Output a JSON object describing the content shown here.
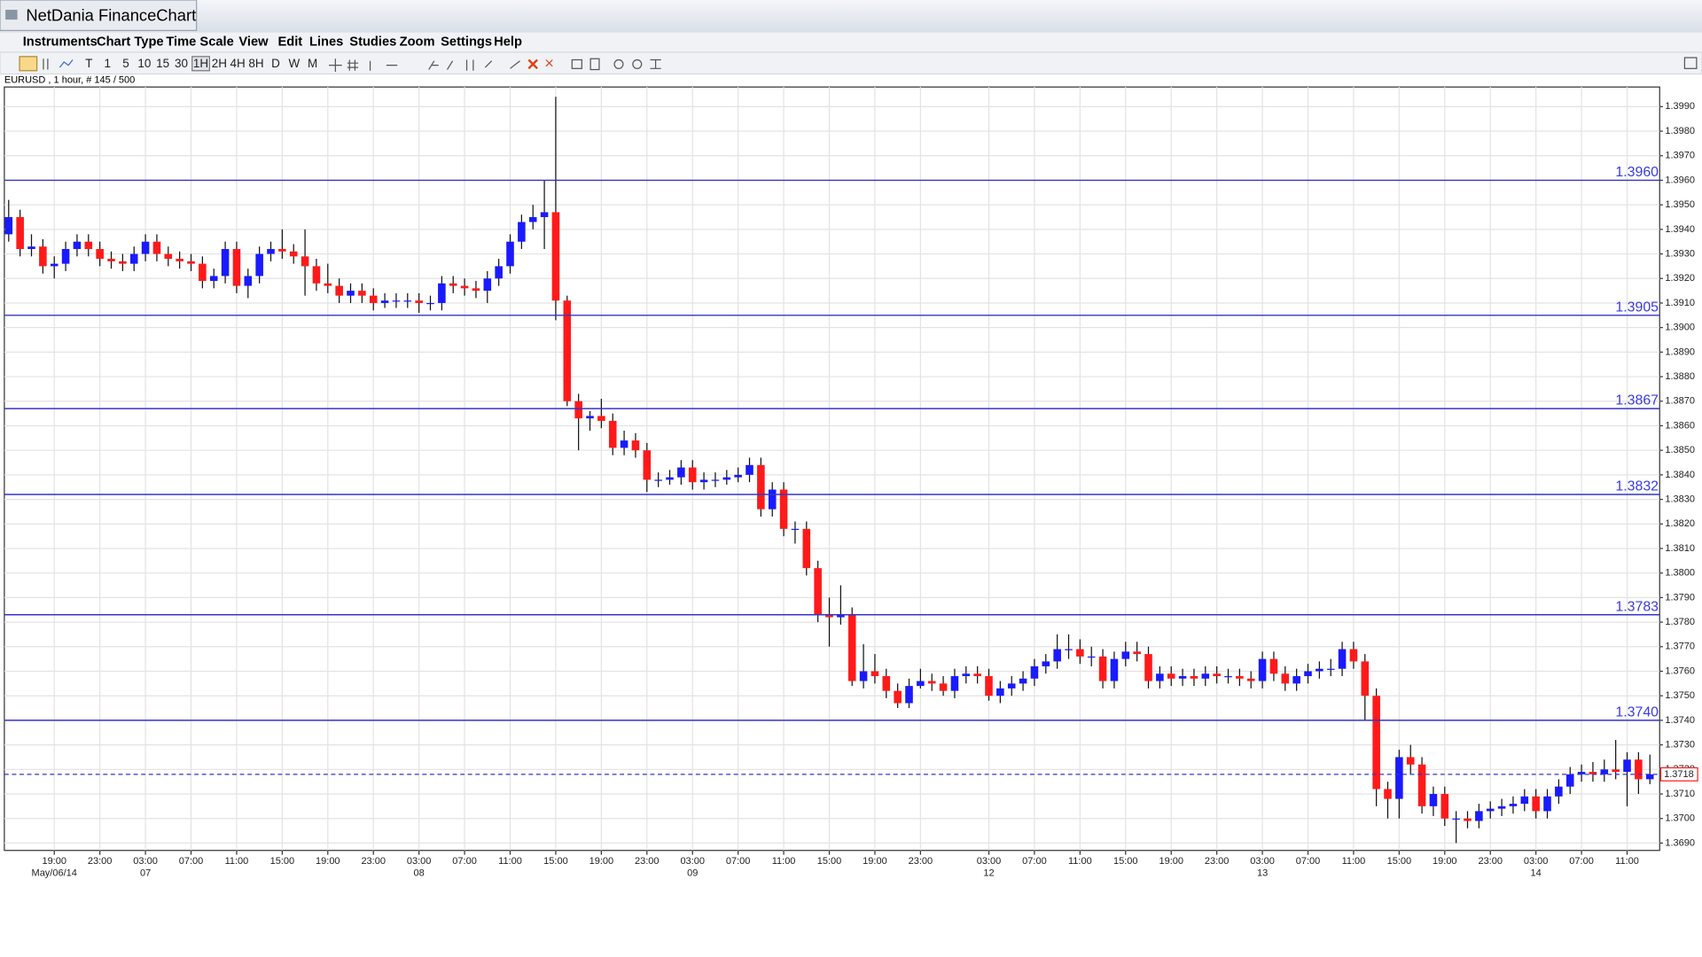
{
  "app": {
    "title": "NetDania FinanceChart",
    "menu": [
      "Instruments",
      "Chart Type",
      "Time Scale",
      "View",
      "Edit",
      "Lines",
      "Studies",
      "Zoom",
      "Settings",
      "Help"
    ],
    "toolbar": [
      "T",
      "1",
      "5",
      "10",
      "15",
      "30",
      "1H",
      "2H",
      "4H",
      "8H",
      "D",
      "W",
      "M"
    ],
    "info": "EURUSD , 1 hour, # 145 / 500"
  },
  "chart_data": {
    "type": "candlestick",
    "up_color": "#1a1aff",
    "down_color": "#ff1a1a",
    "level_color": "#3434c8",
    "grid": true,
    "ylim": [
      1.3687,
      1.3998
    ],
    "yticks": [
      {
        "value": 1.369,
        "label": "1.3690"
      },
      {
        "value": 1.37,
        "label": "1.3700"
      },
      {
        "value": 1.371,
        "label": "1.3710"
      },
      {
        "value": 1.372,
        "label": "1.3720"
      },
      {
        "value": 1.373,
        "label": "1.3730"
      },
      {
        "value": 1.374,
        "label": "1.3740"
      },
      {
        "value": 1.375,
        "label": "1.3750"
      },
      {
        "value": 1.376,
        "label": "1.3760"
      },
      {
        "value": 1.377,
        "label": "1.3770"
      },
      {
        "value": 1.378,
        "label": "1.3780"
      },
      {
        "value": 1.379,
        "label": "1.3790"
      },
      {
        "value": 1.38,
        "label": "1.3800"
      },
      {
        "value": 1.381,
        "label": "1.3810"
      },
      {
        "value": 1.382,
        "label": "1.3820"
      },
      {
        "value": 1.383,
        "label": "1.3830"
      },
      {
        "value": 1.384,
        "label": "1.3840"
      },
      {
        "value": 1.385,
        "label": "1.3850"
      },
      {
        "value": 1.386,
        "label": "1.3860"
      },
      {
        "value": 1.387,
        "label": "1.3870"
      },
      {
        "value": 1.388,
        "label": "1.3880"
      },
      {
        "value": 1.389,
        "label": "1.3890"
      },
      {
        "value": 1.39,
        "label": "1.3900"
      },
      {
        "value": 1.391,
        "label": "1.3910"
      },
      {
        "value": 1.392,
        "label": "1.3920"
      },
      {
        "value": 1.393,
        "label": "1.3930"
      },
      {
        "value": 1.394,
        "label": "1.3940"
      },
      {
        "value": 1.395,
        "label": "1.3950"
      },
      {
        "value": 1.396,
        "label": "1.3960"
      },
      {
        "value": 1.397,
        "label": "1.3970"
      },
      {
        "value": 1.398,
        "label": "1.3980"
      },
      {
        "value": 1.399,
        "label": "1.3990"
      }
    ],
    "xticks": [
      {
        "value": 4,
        "label": "19:00"
      },
      {
        "value": 8,
        "label": "23:00"
      },
      {
        "value": 12,
        "label": "03:00"
      },
      {
        "value": 16,
        "label": "07:00"
      },
      {
        "value": 20,
        "label": "11:00"
      },
      {
        "value": 24,
        "label": "15:00"
      },
      {
        "value": 28,
        "label": "19:00"
      },
      {
        "value": 32,
        "label": "23:00"
      },
      {
        "value": 36,
        "label": "03:00"
      },
      {
        "value": 40,
        "label": "07:00"
      },
      {
        "value": 44,
        "label": "11:00"
      },
      {
        "value": 48,
        "label": "15:00"
      },
      {
        "value": 52,
        "label": "19:00"
      },
      {
        "value": 56,
        "label": "23:00"
      },
      {
        "value": 60,
        "label": "03:00"
      },
      {
        "value": 64,
        "label": "07:00"
      },
      {
        "value": 68,
        "label": "11:00"
      },
      {
        "value": 72,
        "label": "15:00"
      },
      {
        "value": 76,
        "label": "19:00"
      },
      {
        "value": 80,
        "label": "23:00"
      },
      {
        "value": 86,
        "label": "03:00"
      },
      {
        "value": 90,
        "label": "07:00"
      },
      {
        "value": 94,
        "label": "11:00"
      },
      {
        "value": 98,
        "label": "15:00"
      },
      {
        "value": 102,
        "label": "19:00"
      },
      {
        "value": 106,
        "label": "23:00"
      },
      {
        "value": 110,
        "label": "03:00"
      },
      {
        "value": 114,
        "label": "07:00"
      },
      {
        "value": 118,
        "label": "11:00"
      },
      {
        "value": 122,
        "label": "15:00"
      },
      {
        "value": 126,
        "label": "19:00"
      },
      {
        "value": 130,
        "label": "23:00"
      },
      {
        "value": 134,
        "label": "03:00"
      },
      {
        "value": 138,
        "label": "07:00"
      },
      {
        "value": 142,
        "label": "11:00"
      }
    ],
    "xdates": [
      {
        "value": 4,
        "label": "May/06/14"
      },
      {
        "value": 12,
        "label": "07"
      },
      {
        "value": 36,
        "label": "08"
      },
      {
        "value": 60,
        "label": "09"
      },
      {
        "value": 86,
        "label": "12"
      },
      {
        "value": 110,
        "label": "13"
      },
      {
        "value": 134,
        "label": "14"
      }
    ],
    "levels": [
      {
        "value": 1.396,
        "label": "1.3960"
      },
      1.3905,
      1.3867,
      1.3832,
      1.3783,
      {
        "value": 1.374,
        "label": "1.3740"
      }
    ],
    "last": 1.3718,
    "candles": [
      [
        1.3938,
        1.3952,
        1.3935,
        1.3945
      ],
      [
        1.3945,
        1.3948,
        1.3929,
        1.3932
      ],
      [
        1.3932,
        1.3938,
        1.3929,
        1.3933
      ],
      [
        1.3933,
        1.3936,
        1.3922,
        1.3925
      ],
      [
        1.3925,
        1.3929,
        1.392,
        1.3926
      ],
      [
        1.3926,
        1.3935,
        1.3923,
        1.3932
      ],
      [
        1.3932,
        1.3938,
        1.3929,
        1.3935
      ],
      [
        1.3935,
        1.3938,
        1.3929,
        1.3932
      ],
      [
        1.3932,
        1.3935,
        1.3925,
        1.3928
      ],
      [
        1.3928,
        1.3931,
        1.3924,
        1.3927
      ],
      [
        1.3927,
        1.393,
        1.3923,
        1.3926
      ],
      [
        1.3926,
        1.3933,
        1.3923,
        1.393
      ],
      [
        1.393,
        1.3938,
        1.3927,
        1.3935
      ],
      [
        1.3935,
        1.3938,
        1.3927,
        1.393
      ],
      [
        1.393,
        1.3933,
        1.3925,
        1.3928
      ],
      [
        1.3928,
        1.3931,
        1.3924,
        1.3927
      ],
      [
        1.3927,
        1.393,
        1.3923,
        1.3926
      ],
      [
        1.3926,
        1.3929,
        1.3916,
        1.3919
      ],
      [
        1.3919,
        1.3924,
        1.3916,
        1.3921
      ],
      [
        1.3921,
        1.3935,
        1.3918,
        1.3932
      ],
      [
        1.3932,
        1.3935,
        1.3914,
        1.3917
      ],
      [
        1.3917,
        1.3924,
        1.3912,
        1.3921
      ],
      [
        1.3921,
        1.3933,
        1.3918,
        1.393
      ],
      [
        1.393,
        1.3935,
        1.3927,
        1.3932
      ],
      [
        1.3932,
        1.394,
        1.3928,
        1.3931
      ],
      [
        1.3931,
        1.3934,
        1.3926,
        1.3929
      ],
      [
        1.3929,
        1.394,
        1.3913,
        1.3925
      ],
      [
        1.3925,
        1.3928,
        1.3915,
        1.3918
      ],
      [
        1.3918,
        1.3926,
        1.3914,
        1.3917
      ],
      [
        1.3917,
        1.392,
        1.391,
        1.3913
      ],
      [
        1.3913,
        1.3918,
        1.391,
        1.3915
      ],
      [
        1.3915,
        1.3918,
        1.391,
        1.3913
      ],
      [
        1.3913,
        1.3916,
        1.3907,
        1.391
      ],
      [
        1.391,
        1.3914,
        1.3908,
        1.3911
      ],
      [
        1.3911,
        1.3914,
        1.3908,
        1.3911
      ],
      [
        1.3911,
        1.3914,
        1.3908,
        1.3911
      ],
      [
        1.3911,
        1.3914,
        1.3906,
        1.391
      ],
      [
        1.391,
        1.3913,
        1.3907,
        1.391
      ],
      [
        1.391,
        1.3921,
        1.3907,
        1.3918
      ],
      [
        1.3918,
        1.3921,
        1.3914,
        1.3917
      ],
      [
        1.3917,
        1.392,
        1.3913,
        1.3916
      ],
      [
        1.3916,
        1.3919,
        1.3912,
        1.3915
      ],
      [
        1.3915,
        1.3923,
        1.391,
        1.392
      ],
      [
        1.392,
        1.3928,
        1.3917,
        1.3925
      ],
      [
        1.3925,
        1.3938,
        1.3922,
        1.3935
      ],
      [
        1.3935,
        1.3946,
        1.3932,
        1.3943
      ],
      [
        1.3943,
        1.395,
        1.394,
        1.3945
      ],
      [
        1.3945,
        1.396,
        1.3932,
        1.3947
      ],
      [
        1.3947,
        1.3994,
        1.3903,
        1.3911
      ],
      [
        1.3911,
        1.3913,
        1.3868,
        1.387
      ],
      [
        1.387,
        1.3873,
        1.385,
        1.3863
      ],
      [
        1.3863,
        1.3866,
        1.3858,
        1.3864
      ],
      [
        1.3864,
        1.3871,
        1.3859,
        1.3862
      ],
      [
        1.3862,
        1.3865,
        1.3848,
        1.3851
      ],
      [
        1.3851,
        1.3858,
        1.3848,
        1.3854
      ],
      [
        1.3854,
        1.3857,
        1.3847,
        1.385
      ],
      [
        1.385,
        1.3853,
        1.3833,
        1.3838
      ],
      [
        1.3838,
        1.3841,
        1.3835,
        1.3838
      ],
      [
        1.3838,
        1.3842,
        1.3836,
        1.3839
      ],
      [
        1.3839,
        1.3846,
        1.3836,
        1.3843
      ],
      [
        1.3843,
        1.3846,
        1.3834,
        1.3837
      ],
      [
        1.3837,
        1.3841,
        1.3834,
        1.3838
      ],
      [
        1.3838,
        1.3841,
        1.3835,
        1.3838
      ],
      [
        1.3838,
        1.3842,
        1.3836,
        1.3839
      ],
      [
        1.3839,
        1.3843,
        1.3837,
        1.384
      ],
      [
        1.384,
        1.3847,
        1.3837,
        1.3844
      ],
      [
        1.3844,
        1.3847,
        1.3823,
        1.3826
      ],
      [
        1.3826,
        1.3837,
        1.3823,
        1.3834
      ],
      [
        1.3834,
        1.3837,
        1.3815,
        1.3818
      ],
      [
        1.3818,
        1.3821,
        1.3812,
        1.3818
      ],
      [
        1.3818,
        1.3821,
        1.3799,
        1.3802
      ],
      [
        1.3802,
        1.3805,
        1.378,
        1.3783
      ],
      [
        1.3783,
        1.379,
        1.377,
        1.3782
      ],
      [
        1.3782,
        1.3795,
        1.3779,
        1.3783
      ],
      [
        1.3783,
        1.3786,
        1.3754,
        1.3756
      ],
      [
        1.3756,
        1.3771,
        1.3753,
        1.376
      ],
      [
        1.376,
        1.3767,
        1.3755,
        1.3758
      ],
      [
        1.3758,
        1.3761,
        1.3749,
        1.3752
      ],
      [
        1.3752,
        1.3755,
        1.3745,
        1.3747
      ],
      [
        1.3747,
        1.3757,
        1.3745,
        1.3754
      ],
      [
        1.3754,
        1.3761,
        1.3753,
        1.3756
      ],
      [
        1.3756,
        1.3759,
        1.3752,
        1.3755
      ],
      [
        1.3755,
        1.3758,
        1.375,
        1.3752
      ],
      [
        1.3752,
        1.3761,
        1.3749,
        1.3758
      ],
      [
        1.3758,
        1.3762,
        1.3755,
        1.3759
      ],
      [
        1.3759,
        1.3762,
        1.3755,
        1.3758
      ],
      [
        1.3758,
        1.3761,
        1.3748,
        1.375
      ],
      [
        1.375,
        1.3756,
        1.3747,
        1.3753
      ],
      [
        1.3753,
        1.3758,
        1.375,
        1.3755
      ],
      [
        1.3755,
        1.376,
        1.3752,
        1.3757
      ],
      [
        1.3757,
        1.3765,
        1.3754,
        1.3762
      ],
      [
        1.3762,
        1.3767,
        1.3759,
        1.3764
      ],
      [
        1.3764,
        1.3775,
        1.3761,
        1.3769
      ],
      [
        1.3769,
        1.3775,
        1.3765,
        1.3769
      ],
      [
        1.3769,
        1.3773,
        1.3763,
        1.3766
      ],
      [
        1.3766,
        1.377,
        1.3762,
        1.3766
      ],
      [
        1.3766,
        1.3769,
        1.3753,
        1.3756
      ],
      [
        1.3756,
        1.3768,
        1.3753,
        1.3765
      ],
      [
        1.3765,
        1.3772,
        1.3762,
        1.3768
      ],
      [
        1.3768,
        1.3772,
        1.3764,
        1.3767
      ],
      [
        1.3767,
        1.377,
        1.3753,
        1.3756
      ],
      [
        1.3756,
        1.3762,
        1.3753,
        1.3759
      ],
      [
        1.3759,
        1.3762,
        1.3754,
        1.3757
      ],
      [
        1.3757,
        1.3761,
        1.3754,
        1.3758
      ],
      [
        1.3758,
        1.3761,
        1.3754,
        1.3757
      ],
      [
        1.3757,
        1.3762,
        1.3754,
        1.3759
      ],
      [
        1.3759,
        1.3762,
        1.3755,
        1.3758
      ],
      [
        1.3758,
        1.3761,
        1.3755,
        1.3758
      ],
      [
        1.3758,
        1.3761,
        1.3754,
        1.3757
      ],
      [
        1.3757,
        1.376,
        1.3753,
        1.3756
      ],
      [
        1.3756,
        1.3768,
        1.3753,
        1.3765
      ],
      [
        1.3765,
        1.3768,
        1.3756,
        1.3759
      ],
      [
        1.3759,
        1.3762,
        1.3752,
        1.3755
      ],
      [
        1.3755,
        1.3761,
        1.3752,
        1.3758
      ],
      [
        1.3758,
        1.3763,
        1.3755,
        1.376
      ],
      [
        1.376,
        1.3764,
        1.3757,
        1.3761
      ],
      [
        1.3761,
        1.3765,
        1.3758,
        1.3761
      ],
      [
        1.3761,
        1.3772,
        1.3758,
        1.3769
      ],
      [
        1.3769,
        1.3772,
        1.3761,
        1.3764
      ],
      [
        1.3764,
        1.3767,
        1.374,
        1.375
      ],
      [
        1.375,
        1.3753,
        1.3705,
        1.3712
      ],
      [
        1.3712,
        1.3715,
        1.37,
        1.3708
      ],
      [
        1.3708,
        1.3728,
        1.37,
        1.3725
      ],
      [
        1.3725,
        1.373,
        1.3718,
        1.3722
      ],
      [
        1.3722,
        1.3725,
        1.3702,
        1.3705
      ],
      [
        1.3705,
        1.3713,
        1.3701,
        1.371
      ],
      [
        1.371,
        1.3713,
        1.3697,
        1.37
      ],
      [
        1.37,
        1.3703,
        1.369,
        1.37
      ],
      [
        1.37,
        1.3703,
        1.3696,
        1.3699
      ],
      [
        1.3699,
        1.3706,
        1.3696,
        1.3703
      ],
      [
        1.3703,
        1.3707,
        1.37,
        1.3704
      ],
      [
        1.3704,
        1.3708,
        1.3701,
        1.3705
      ],
      [
        1.3705,
        1.3709,
        1.3702,
        1.3706
      ],
      [
        1.3706,
        1.3712,
        1.3703,
        1.3709
      ],
      [
        1.3709,
        1.3712,
        1.37,
        1.3703
      ],
      [
        1.3703,
        1.3712,
        1.37,
        1.3709
      ],
      [
        1.3709,
        1.3716,
        1.3706,
        1.3713
      ],
      [
        1.3713,
        1.3721,
        1.371,
        1.3718
      ],
      [
        1.3718,
        1.3722,
        1.3715,
        1.3719
      ],
      [
        1.3719,
        1.3723,
        1.3715,
        1.3718
      ],
      [
        1.3718,
        1.3724,
        1.3715,
        1.372
      ],
      [
        1.372,
        1.3732,
        1.3716,
        1.3719
      ],
      [
        1.3719,
        1.3727,
        1.3705,
        1.3724
      ],
      [
        1.3724,
        1.3727,
        1.371,
        1.3716
      ],
      [
        1.3716,
        1.3726,
        1.3714,
        1.3718
      ]
    ]
  }
}
